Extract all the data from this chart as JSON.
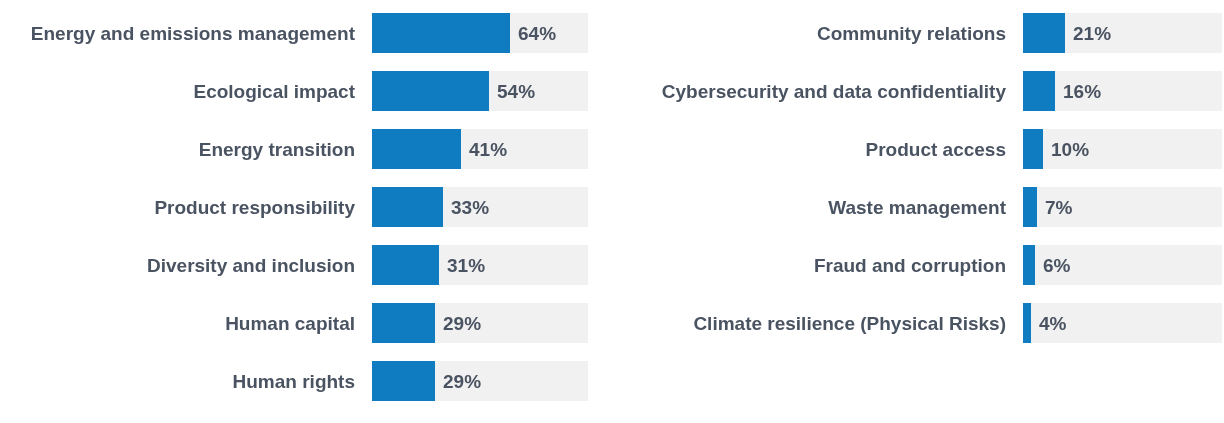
{
  "chart_data": [
    {
      "type": "bar",
      "orientation": "horizontal",
      "stacked": true,
      "xlim": [
        0,
        100
      ],
      "tick_labels": "y",
      "grid": false,
      "categories": [
        "Energy and emissions management",
        "Ecological impact",
        "Energy transition",
        "Product responsibility",
        "Diversity and inclusion",
        "Human capital",
        "Human rights"
      ],
      "series": [
        {
          "color": "#0f7cc2",
          "values": [
            64,
            54,
            41,
            33,
            31,
            29,
            29
          ],
          "value_labels": [
            "64%",
            "54%",
            "41%",
            "33%",
            "31%",
            "29%",
            "29%"
          ]
        },
        {
          "color": "#f1f1f1",
          "values": [
            36,
            46,
            59,
            67,
            69,
            71,
            71
          ]
        }
      ]
    },
    {
      "type": "bar",
      "orientation": "horizontal",
      "stacked": true,
      "xlim": [
        0,
        100
      ],
      "tick_labels": "y",
      "grid": false,
      "categories": [
        "Community relations",
        "Cybersecurity and data confidentiality",
        "Product access",
        "Waste management",
        "Fraud and corruption",
        "Climate resilience (Physical Risks)"
      ],
      "series": [
        {
          "color": "#0f7cc2",
          "values": [
            21,
            16,
            10,
            7,
            6,
            4
          ],
          "value_labels": [
            "21%",
            "16%",
            "10%",
            "7%",
            "6%",
            "4%"
          ]
        },
        {
          "color": "#f1f1f1",
          "values": [
            79,
            84,
            90,
            93,
            94,
            96
          ]
        }
      ]
    }
  ]
}
